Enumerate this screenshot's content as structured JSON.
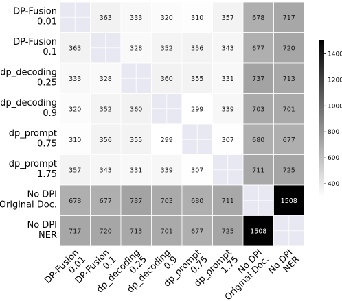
{
  "chart_data": {
    "type": "heatmap",
    "title": "",
    "xlabel": "",
    "ylabel": "",
    "row_labels": [
      [
        "DP-Fusion",
        "0.01"
      ],
      [
        "DP-Fusion",
        "0.1"
      ],
      [
        "dp_decoding",
        "0.25"
      ],
      [
        "dp_decoding",
        "0.9"
      ],
      [
        "dp_prompt",
        "0.75"
      ],
      [
        "dp_prompt",
        "1.75"
      ],
      [
        "No DPI",
        "Original Doc."
      ],
      [
        "No DPI",
        "NER"
      ]
    ],
    "col_labels": [
      [
        "DP-Fusion",
        "0.01"
      ],
      [
        "DP-Fusion",
        "0.1"
      ],
      [
        "dp_decoding",
        "0.25"
      ],
      [
        "dp_decoding",
        "0.9"
      ],
      [
        "dp_prompt",
        "0.75"
      ],
      [
        "dp_prompt",
        "1.75"
      ],
      [
        "No DPI",
        "Original Doc."
      ],
      [
        "No DPI",
        "NER"
      ]
    ],
    "values": [
      [
        null,
        363,
        333,
        320,
        310,
        357,
        678,
        717
      ],
      [
        363,
        null,
        328,
        352,
        356,
        343,
        677,
        720
      ],
      [
        333,
        328,
        null,
        360,
        355,
        331,
        737,
        713
      ],
      [
        320,
        352,
        360,
        null,
        299,
        339,
        703,
        701
      ],
      [
        310,
        356,
        355,
        299,
        null,
        307,
        680,
        677
      ],
      [
        357,
        343,
        331,
        339,
        307,
        null,
        711,
        725
      ],
      [
        678,
        677,
        737,
        703,
        680,
        711,
        null,
        1508
      ],
      [
        717,
        720,
        713,
        701,
        677,
        725,
        1508,
        null
      ]
    ],
    "diagonal_color": "#e8e8f3",
    "colormap": "Greys",
    "colorbar": {
      "min": 300,
      "max": 1508,
      "ticks": [
        400,
        600,
        800,
        1000,
        1200,
        1400
      ]
    }
  }
}
